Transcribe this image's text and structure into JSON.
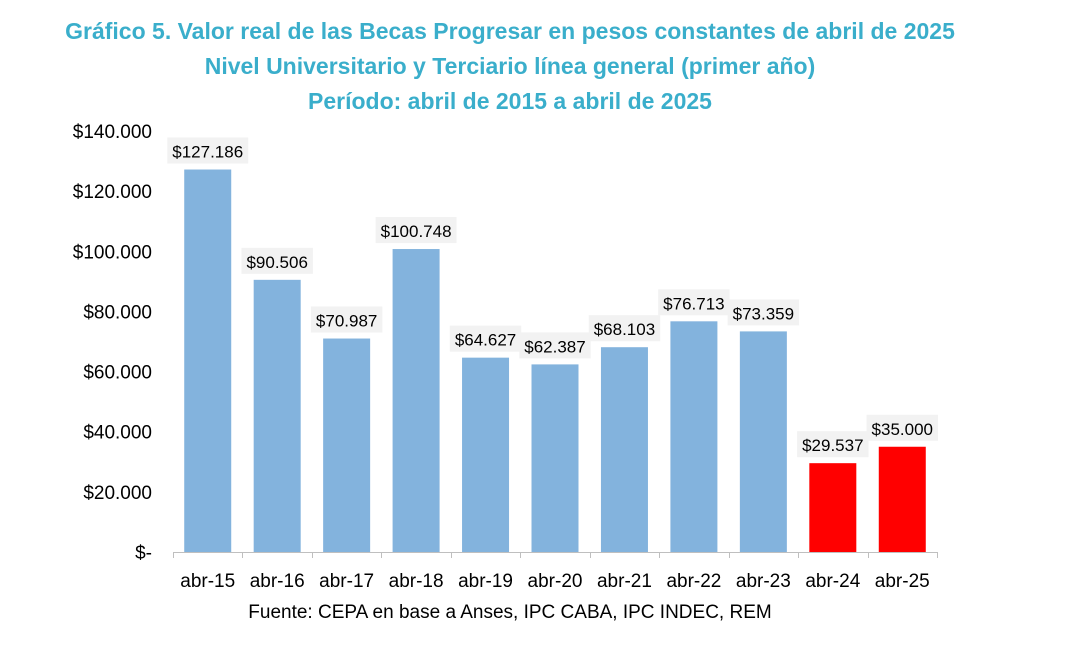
{
  "chart_data": {
    "type": "bar",
    "title": [
      "Gráfico 5. Valor real de las Becas Progresar en pesos constantes de abril de 2025",
      "Nivel Universitario y Terciario línea general (primer año)",
      "Período: abril de 2015 a abril de 2025"
    ],
    "categories": [
      "abr-15",
      "abr-16",
      "abr-17",
      "abr-18",
      "abr-19",
      "abr-20",
      "abr-21",
      "abr-22",
      "abr-23",
      "abr-24",
      "abr-25"
    ],
    "values": [
      127186,
      90506,
      70987,
      100748,
      64627,
      62387,
      68103,
      76713,
      73359,
      29537,
      35000
    ],
    "data_labels": [
      "$127.186",
      "$90.506",
      "$70.987",
      "$100.748",
      "$64.627",
      "$62.387",
      "$68.103",
      "$76.713",
      "$73.359",
      "$29.537",
      "$35.000"
    ],
    "y_ticks": [
      {
        "value": 0,
        "label": "$-"
      },
      {
        "value": 20000,
        "label": "$20.000"
      },
      {
        "value": 40000,
        "label": "$40.000"
      },
      {
        "value": 60000,
        "label": "$60.000"
      },
      {
        "value": 80000,
        "label": "$80.000"
      },
      {
        "value": 100000,
        "label": "$100.000"
      },
      {
        "value": 120000,
        "label": "$120.000"
      },
      {
        "value": 140000,
        "label": "$140.000"
      }
    ],
    "ylim": [
      0,
      140000
    ],
    "grid": false,
    "colors": {
      "default": "#83b3dd",
      "highlight": "#ff0000"
    },
    "highlighted_categories": [
      "abr-24",
      "abr-25"
    ],
    "xlabel": "",
    "ylabel": ""
  },
  "source": "Fuente: CEPA en base a Anses, IPC CABA, IPC INDEC, REM"
}
